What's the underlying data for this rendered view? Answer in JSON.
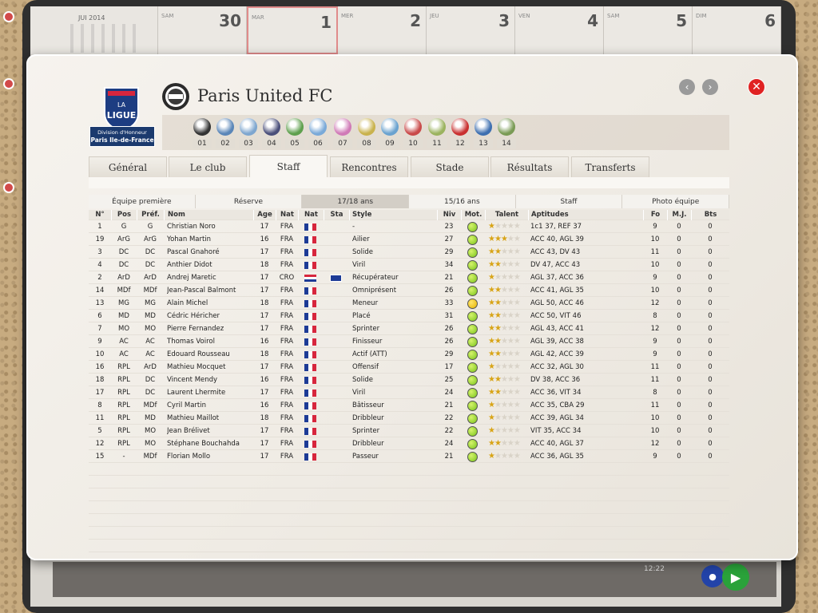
{
  "background": {
    "calendar": {
      "month_title": "JUI 2014",
      "days": [
        {
          "name": "SAM",
          "number": "30"
        },
        {
          "name": "MAR",
          "number": "1"
        },
        {
          "name": "MER",
          "number": "2"
        },
        {
          "name": "JEU",
          "number": "3"
        },
        {
          "name": "VEN",
          "number": "4"
        },
        {
          "name": "SAM",
          "number": "5"
        },
        {
          "name": "DIM",
          "number": "6"
        }
      ]
    },
    "bottom_bar": {
      "time": "12:22"
    }
  },
  "dialog": {
    "league": {
      "logo_text": "LA LIGUE",
      "division": "Division d'Honneur",
      "region": "Paris Ile-de-France"
    },
    "club_name": "Paris United FC",
    "nav": {
      "prev": "‹",
      "next": "›",
      "close": "✕"
    },
    "teams": [
      {
        "num": "01",
        "color": "#333333"
      },
      {
        "num": "02",
        "color": "#5a86b8"
      },
      {
        "num": "03",
        "color": "#7ea6cf"
      },
      {
        "num": "04",
        "color": "#4a4f7a"
      },
      {
        "num": "05",
        "color": "#5fa04e"
      },
      {
        "num": "06",
        "color": "#7aa9d8"
      },
      {
        "num": "07",
        "color": "#d07ab7"
      },
      {
        "num": "08",
        "color": "#c9b24d"
      },
      {
        "num": "09",
        "color": "#6aa2cf"
      },
      {
        "num": "10",
        "color": "#c94a4a"
      },
      {
        "num": "11",
        "color": "#9bb35f"
      },
      {
        "num": "12",
        "color": "#c93030"
      },
      {
        "num": "13",
        "color": "#3d6fb0"
      },
      {
        "num": "14",
        "color": "#7a9b55"
      }
    ],
    "tabs": [
      "Général",
      "Le club",
      "Staff",
      "Rencontres",
      "Stade",
      "Résultats",
      "Transferts"
    ],
    "active_tab": "Staff",
    "subtabs": [
      "Équipe première",
      "Réserve",
      "17/18 ans",
      "15/16 ans",
      "Staff",
      "Photo équipe"
    ],
    "active_subtab": "17/18 ans",
    "columns": {
      "num": "N°",
      "pos": "Pos",
      "pref": "Préf.",
      "name": "Nom",
      "age": "Age",
      "nat": "Nat",
      "nat_flag": "Nat",
      "sta": "Sta",
      "style": "Style",
      "niv": "Niv",
      "mot": "Mot.",
      "talent": "Talent",
      "apt": "Aptitudes",
      "fo": "Fo",
      "mj": "M.J.",
      "bts": "Bts"
    },
    "players": [
      {
        "num": "1",
        "pos": "G",
        "pref": "G",
        "name": "Christian Noro",
        "age": "17",
        "nat": "FRA",
        "flag": "fr",
        "sta": "",
        "style": "-",
        "niv": "23",
        "mot": "green",
        "talent": 1,
        "apt": "1c1 37, REF 37",
        "fo": "9",
        "mj": "0",
        "bts": "0"
      },
      {
        "num": "19",
        "pos": "ArG",
        "pref": "ArG",
        "name": "Yohan Martin",
        "age": "16",
        "nat": "FRA",
        "flag": "fr",
        "sta": "",
        "style": "Ailier",
        "niv": "27",
        "mot": "green",
        "talent": 3,
        "apt": "ACC 40, AGL 39",
        "fo": "10",
        "mj": "0",
        "bts": "0"
      },
      {
        "num": "3",
        "pos": "DC",
        "pref": "DC",
        "name": "Pascal Gnahoré",
        "age": "17",
        "nat": "FRA",
        "flag": "fr",
        "sta": "",
        "style": "Solide",
        "niv": "29",
        "mot": "green",
        "talent": 2,
        "apt": "ACC 43, DV 43",
        "fo": "11",
        "mj": "0",
        "bts": "0"
      },
      {
        "num": "4",
        "pos": "DC",
        "pref": "DC",
        "name": "Anthier Didot",
        "age": "18",
        "nat": "FRA",
        "flag": "fr",
        "sta": "",
        "style": "Viril",
        "niv": "34",
        "mot": "green",
        "talent": 2,
        "apt": "DV 47, ACC 43",
        "fo": "10",
        "mj": "0",
        "bts": "0"
      },
      {
        "num": "2",
        "pos": "ArD",
        "pref": "ArD",
        "name": "Andrej Maretic",
        "age": "17",
        "nat": "CRO",
        "flag": "cro",
        "sta": "eu",
        "style": "Récupérateur",
        "niv": "21",
        "mot": "green",
        "talent": 1,
        "apt": "AGL 37, ACC 36",
        "fo": "9",
        "mj": "0",
        "bts": "0"
      },
      {
        "num": "14",
        "pos": "MDf",
        "pref": "MDf",
        "name": "Jean-Pascal Balmont",
        "age": "17",
        "nat": "FRA",
        "flag": "fr",
        "sta": "",
        "style": "Omniprésent",
        "niv": "26",
        "mot": "green",
        "talent": 2,
        "apt": "ACC 41, AGL 35",
        "fo": "10",
        "mj": "0",
        "bts": "0"
      },
      {
        "num": "13",
        "pos": "MG",
        "pref": "MG",
        "name": "Alain Michel",
        "age": "18",
        "nat": "FRA",
        "flag": "fr",
        "sta": "",
        "style": "Meneur",
        "niv": "33",
        "mot": "yellow",
        "talent": 2,
        "apt": "AGL 50, ACC 46",
        "fo": "12",
        "mj": "0",
        "bts": "0"
      },
      {
        "num": "6",
        "pos": "MD",
        "pref": "MD",
        "name": "Cédric Héricher",
        "age": "17",
        "nat": "FRA",
        "flag": "fr",
        "sta": "",
        "style": "Placé",
        "niv": "31",
        "mot": "green",
        "talent": 2,
        "apt": "ACC 50, VIT 46",
        "fo": "8",
        "mj": "0",
        "bts": "0"
      },
      {
        "num": "7",
        "pos": "MO",
        "pref": "MO",
        "name": "Pierre Fernandez",
        "age": "17",
        "nat": "FRA",
        "flag": "fr",
        "sta": "",
        "style": "Sprinter",
        "niv": "26",
        "mot": "green",
        "talent": 2,
        "apt": "AGL 43, ACC 41",
        "fo": "12",
        "mj": "0",
        "bts": "0"
      },
      {
        "num": "9",
        "pos": "AC",
        "pref": "AC",
        "name": "Thomas Voirol",
        "age": "16",
        "nat": "FRA",
        "flag": "fr",
        "sta": "",
        "style": "Finisseur",
        "niv": "26",
        "mot": "green",
        "talent": 2,
        "apt": "AGL 39, ACC 38",
        "fo": "9",
        "mj": "0",
        "bts": "0"
      },
      {
        "num": "10",
        "pos": "AC",
        "pref": "AC",
        "name": "Edouard Rousseau",
        "age": "18",
        "nat": "FRA",
        "flag": "fr",
        "sta": "",
        "style": "Actif (ATT)",
        "niv": "29",
        "mot": "green",
        "talent": 2,
        "apt": "AGL 42, ACC 39",
        "fo": "9",
        "mj": "0",
        "bts": "0"
      },
      {
        "num": "16",
        "pos": "RPL",
        "pref": "ArD",
        "name": "Mathieu Mocquet",
        "age": "17",
        "nat": "FRA",
        "flag": "fr",
        "sta": "",
        "style": "Offensif",
        "niv": "17",
        "mot": "green",
        "talent": 1,
        "apt": "ACC 32, AGL 30",
        "fo": "11",
        "mj": "0",
        "bts": "0"
      },
      {
        "num": "18",
        "pos": "RPL",
        "pref": "DC",
        "name": "Vincent Mendy",
        "age": "16",
        "nat": "FRA",
        "flag": "fr",
        "sta": "",
        "style": "Solide",
        "niv": "25",
        "mot": "green",
        "talent": 2,
        "apt": "DV 38, ACC 36",
        "fo": "11",
        "mj": "0",
        "bts": "0"
      },
      {
        "num": "17",
        "pos": "RPL",
        "pref": "DC",
        "name": "Laurent Lhermite",
        "age": "17",
        "nat": "FRA",
        "flag": "fr",
        "sta": "",
        "style": "Viril",
        "niv": "24",
        "mot": "green",
        "talent": 2,
        "apt": "ACC 36, VIT 34",
        "fo": "8",
        "mj": "0",
        "bts": "0"
      },
      {
        "num": "8",
        "pos": "RPL",
        "pref": "MDf",
        "name": "Cyril Martin",
        "age": "16",
        "nat": "FRA",
        "flag": "fr",
        "sta": "",
        "style": "Bâtisseur",
        "niv": "21",
        "mot": "green",
        "talent": 1,
        "apt": "ACC 35, CBA 29",
        "fo": "11",
        "mj": "0",
        "bts": "0"
      },
      {
        "num": "11",
        "pos": "RPL",
        "pref": "MD",
        "name": "Mathieu Maillot",
        "age": "18",
        "nat": "FRA",
        "flag": "fr",
        "sta": "",
        "style": "Dribbleur",
        "niv": "22",
        "mot": "green",
        "talent": 1,
        "apt": "ACC 39, AGL 34",
        "fo": "10",
        "mj": "0",
        "bts": "0"
      },
      {
        "num": "5",
        "pos": "RPL",
        "pref": "MO",
        "name": "Jean Brélivet",
        "age": "17",
        "nat": "FRA",
        "flag": "fr",
        "sta": "",
        "style": "Sprinter",
        "niv": "22",
        "mot": "green",
        "talent": 1,
        "apt": "VIT 35, ACC 34",
        "fo": "10",
        "mj": "0",
        "bts": "0"
      },
      {
        "num": "12",
        "pos": "RPL",
        "pref": "MO",
        "name": "Stéphane Bouchahda",
        "age": "17",
        "nat": "FRA",
        "flag": "fr",
        "sta": "",
        "style": "Dribbleur",
        "niv": "24",
        "mot": "green",
        "talent": 2,
        "apt": "ACC 40, AGL 37",
        "fo": "12",
        "mj": "0",
        "bts": "0"
      },
      {
        "num": "15",
        "pos": "-",
        "pref": "MDf",
        "name": "Florian Mollo",
        "age": "17",
        "nat": "FRA",
        "flag": "fr",
        "sta": "",
        "style": "Passeur",
        "niv": "21",
        "mot": "green",
        "talent": 1,
        "apt": "ACC 36, AGL 35",
        "fo": "9",
        "mj": "0",
        "bts": "0"
      }
    ]
  }
}
